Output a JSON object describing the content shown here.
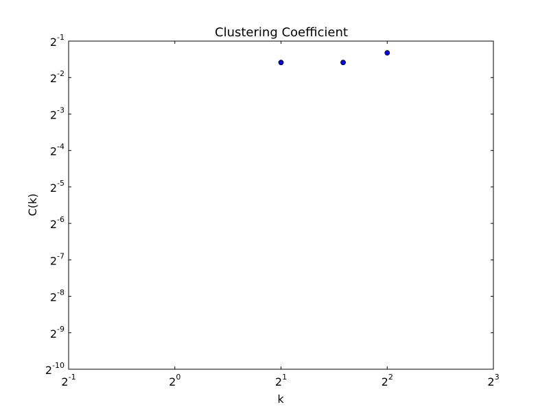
{
  "chart_data": {
    "type": "scatter",
    "title": "Clustering Coefficient",
    "xlabel": "k",
    "ylabel": "C(k)",
    "xscale": "log2",
    "yscale": "log2",
    "xlim": [
      0.5,
      8
    ],
    "ylim": [
      0.0009765625,
      0.5
    ],
    "x_ticks": [
      {
        "base": "2",
        "exp": "-1",
        "value": 0.5
      },
      {
        "base": "2",
        "exp": "0",
        "value": 1
      },
      {
        "base": "2",
        "exp": "1",
        "value": 2
      },
      {
        "base": "2",
        "exp": "2",
        "value": 4
      },
      {
        "base": "2",
        "exp": "3",
        "value": 8
      }
    ],
    "y_ticks": [
      {
        "base": "2",
        "exp": "-10",
        "value": 0.0009765625
      },
      {
        "base": "2",
        "exp": "-9",
        "value": 0.001953125
      },
      {
        "base": "2",
        "exp": "-8",
        "value": 0.00390625
      },
      {
        "base": "2",
        "exp": "-7",
        "value": 0.0078125
      },
      {
        "base": "2",
        "exp": "-6",
        "value": 0.015625
      },
      {
        "base": "2",
        "exp": "-5",
        "value": 0.03125
      },
      {
        "base": "2",
        "exp": "-4",
        "value": 0.0625
      },
      {
        "base": "2",
        "exp": "-3",
        "value": 0.125
      },
      {
        "base": "2",
        "exp": "-2",
        "value": 0.25
      },
      {
        "base": "2",
        "exp": "-1",
        "value": 0.5
      }
    ],
    "points": [
      {
        "x": 2,
        "y": 0.333
      },
      {
        "x": 3,
        "y": 0.333
      },
      {
        "x": 4,
        "y": 0.4
      }
    ],
    "marker_color": "#0000ff",
    "marker_edge_color": "#000000",
    "grid": false
  }
}
